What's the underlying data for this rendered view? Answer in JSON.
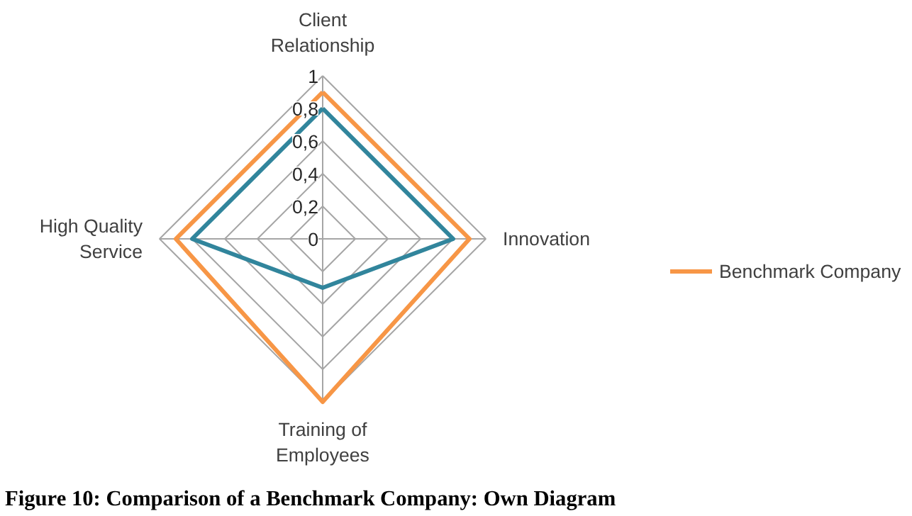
{
  "chart_data": {
    "type": "radar",
    "categories": [
      "Client Relationship",
      "Innovation",
      "Training of Employees",
      "High Quality Service"
    ],
    "series": [
      {
        "name": "Benchmark Company",
        "color": "#f79646",
        "values": [
          0.9,
          0.9,
          1.0,
          0.9
        ]
      },
      {
        "color": "#31859c",
        "values": [
          0.8,
          0.8,
          0.3,
          0.8
        ]
      }
    ],
    "ylim": [
      0,
      1
    ],
    "yticks": [
      {
        "value": 0,
        "label": "0"
      },
      {
        "value": 0.2,
        "label": "0,2"
      },
      {
        "value": 0.4,
        "label": "0,4"
      },
      {
        "value": 0.6,
        "label": "0,6"
      },
      {
        "value": 0.8,
        "label": "0,8"
      },
      {
        "value": 1,
        "label": "1"
      }
    ],
    "grid": true,
    "legend": "right",
    "annotations": [
      "Figure 10: Comparison of a Benchmark Company: Own Diagram"
    ]
  }
}
